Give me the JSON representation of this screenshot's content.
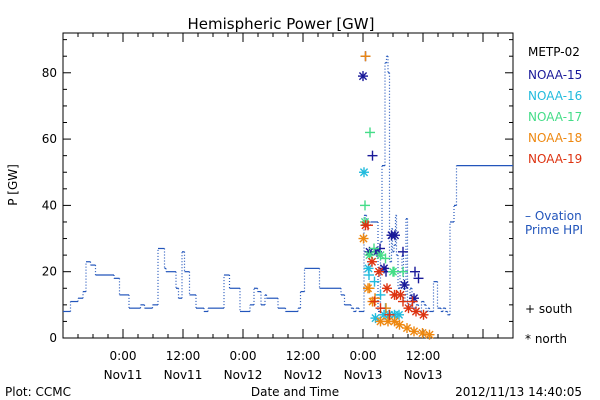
{
  "chart_data": {
    "type": "line",
    "title": "Hemispheric Power [GW]",
    "xlabel": "Date and Time",
    "ylabel": "P [GW]",
    "ylim": [
      0,
      92
    ],
    "y_ticks": [
      0,
      20,
      40,
      60,
      80
    ],
    "x_range_hours": [
      0,
      90
    ],
    "x_ticks": [
      {
        "hour": 12,
        "time": "0:00",
        "date": "Nov11"
      },
      {
        "hour": 24,
        "time": "12:00",
        "date": "Nov11"
      },
      {
        "hour": 36,
        "time": "0:00",
        "date": "Nov12"
      },
      {
        "hour": 48,
        "time": "12:00",
        "date": "Nov12"
      },
      {
        "hour": 60,
        "time": "0:00",
        "date": "Nov13"
      },
      {
        "hour": 72,
        "time": "12:00",
        "date": "Nov13"
      }
    ],
    "legend_title": "METP-02",
    "markers_legend": {
      "south": "+ south",
      "north": "* north"
    },
    "ovation_label": [
      "– Ovation",
      "Prime HPI"
    ],
    "ovation_color": "#2255bb",
    "series": [
      {
        "name": "Ovation Prime HPI",
        "color": "#2255bb",
        "style": "step",
        "x": [
          0,
          1.5,
          3,
          4,
          4.6,
          5.5,
          6.5,
          10.2,
          11.3,
          13.2,
          15.5,
          16.3,
          16.6,
          17.9,
          19,
          20.3,
          20.6,
          22.6,
          23.1,
          23.8,
          24.3,
          25.3,
          26.6,
          27.7,
          28.2,
          28.6,
          29,
          32.2,
          33.3,
          35.4,
          36.3,
          37.4,
          38.2,
          38.9,
          39.6,
          40.4,
          40.7,
          43,
          44.5,
          45.2,
          46.3,
          47,
          47.5,
          48.3,
          51.3,
          51.9,
          52.8,
          55.6,
          56.3,
          57.6,
          58.1,
          58.6,
          59.2,
          60.2,
          60.7,
          61.5,
          62.3,
          63,
          63.5,
          63.8,
          64.4,
          64.7,
          65,
          65.3,
          65.7,
          65.9,
          66.2,
          66.5,
          66.7,
          67,
          67.4,
          67.8,
          68.1,
          68.4,
          68.6,
          68.9,
          69.4,
          69.8,
          70.6,
          71.1,
          71.7,
          72.2,
          72.6,
          73,
          73.3,
          73.8,
          74.1,
          74.9,
          75.6,
          76,
          76.5,
          76.9,
          77.4,
          78.2,
          78.7
        ],
        "y": [
          8,
          11,
          12,
          14,
          23,
          22,
          19,
          18,
          13,
          9,
          10,
          9,
          9,
          10,
          27,
          21,
          20,
          15,
          12,
          26,
          20,
          13,
          9,
          9,
          8,
          8,
          9,
          19,
          15,
          8,
          8,
          10,
          15,
          14,
          10,
          13,
          12,
          9,
          8,
          8,
          8,
          9,
          14,
          21,
          15,
          15,
          15,
          13,
          10,
          9,
          8,
          9,
          8,
          37,
          34,
          35,
          35,
          8,
          29,
          52,
          83,
          85,
          80,
          23,
          33,
          26,
          28,
          37,
          25,
          15,
          20,
          25,
          11,
          13,
          36,
          9,
          15,
          9,
          10,
          8,
          11,
          10,
          8,
          9,
          8,
          8,
          17,
          9,
          8,
          9,
          8,
          7,
          35,
          40,
          52
        ]
      },
      {
        "name": "NOAA-15",
        "color": "#1a1a99",
        "south": [
          [
            60.5,
            85
          ],
          [
            61.9,
            55
          ],
          [
            63.4,
            27
          ],
          [
            64.6,
            20
          ],
          [
            68,
            26
          ],
          [
            70.4,
            20
          ],
          [
            71.1,
            18
          ]
        ],
        "north": [
          [
            60,
            79
          ],
          [
            61.3,
            26
          ],
          [
            62.8,
            26
          ],
          [
            64.2,
            21
          ],
          [
            65.7,
            31
          ],
          [
            66.4,
            31
          ],
          [
            68.3,
            16
          ],
          [
            70.2,
            12
          ]
        ]
      },
      {
        "name": "NOAA-16",
        "color": "#22bbdd",
        "south": [
          [
            61.2,
            19
          ],
          [
            62.3,
            17
          ],
          [
            63.5,
            13
          ],
          [
            64.5,
            9
          ]
        ],
        "north": [
          [
            60.2,
            50
          ],
          [
            61.1,
            21
          ],
          [
            62.5,
            6
          ],
          [
            64.2,
            7
          ],
          [
            65.2,
            7
          ],
          [
            66.3,
            7
          ],
          [
            67.2,
            7
          ]
        ]
      },
      {
        "name": "NOAA-17",
        "color": "#44dd88",
        "south": [
          [
            60.4,
            40
          ],
          [
            61.4,
            62
          ],
          [
            62.2,
            27
          ],
          [
            64.5,
            24
          ],
          [
            66.2,
            20
          ],
          [
            68,
            20
          ]
        ],
        "north": [
          [
            60.4,
            35
          ],
          [
            61.3,
            25
          ],
          [
            63.5,
            25
          ],
          [
            66,
            20
          ]
        ]
      },
      {
        "name": "NOAA-18",
        "color": "#ee8811",
        "south": [
          [
            60.5,
            85
          ],
          [
            61.3,
            15
          ],
          [
            62.4,
            12
          ],
          [
            64.6,
            9
          ]
        ],
        "north": [
          [
            60.1,
            30
          ],
          [
            61,
            15
          ],
          [
            61.9,
            11
          ],
          [
            63.5,
            5
          ],
          [
            65,
            5
          ],
          [
            66.3,
            5
          ],
          [
            67.3,
            4
          ],
          [
            68.8,
            3
          ],
          [
            70.2,
            2
          ],
          [
            71.9,
            1.5
          ],
          [
            73.3,
            1
          ]
        ]
      },
      {
        "name": "NOAA-19",
        "color": "#dd3311",
        "south": [
          [
            61,
            34
          ],
          [
            62.3,
            11
          ],
          [
            63.5,
            9
          ],
          [
            65.3,
            7
          ],
          [
            66.7,
            13
          ],
          [
            68,
            11
          ],
          [
            69.9,
            11
          ]
        ],
        "north": [
          [
            60.5,
            34
          ],
          [
            61.8,
            23
          ],
          [
            63.2,
            20
          ],
          [
            64.8,
            15
          ],
          [
            66.3,
            13
          ],
          [
            67.5,
            13
          ],
          [
            69.1,
            9
          ],
          [
            70.6,
            8
          ],
          [
            72.1,
            7
          ]
        ]
      }
    ]
  },
  "footer": {
    "plot_label": "Plot: CCMC",
    "timestamp": "2012/11/13 14:40:05"
  }
}
